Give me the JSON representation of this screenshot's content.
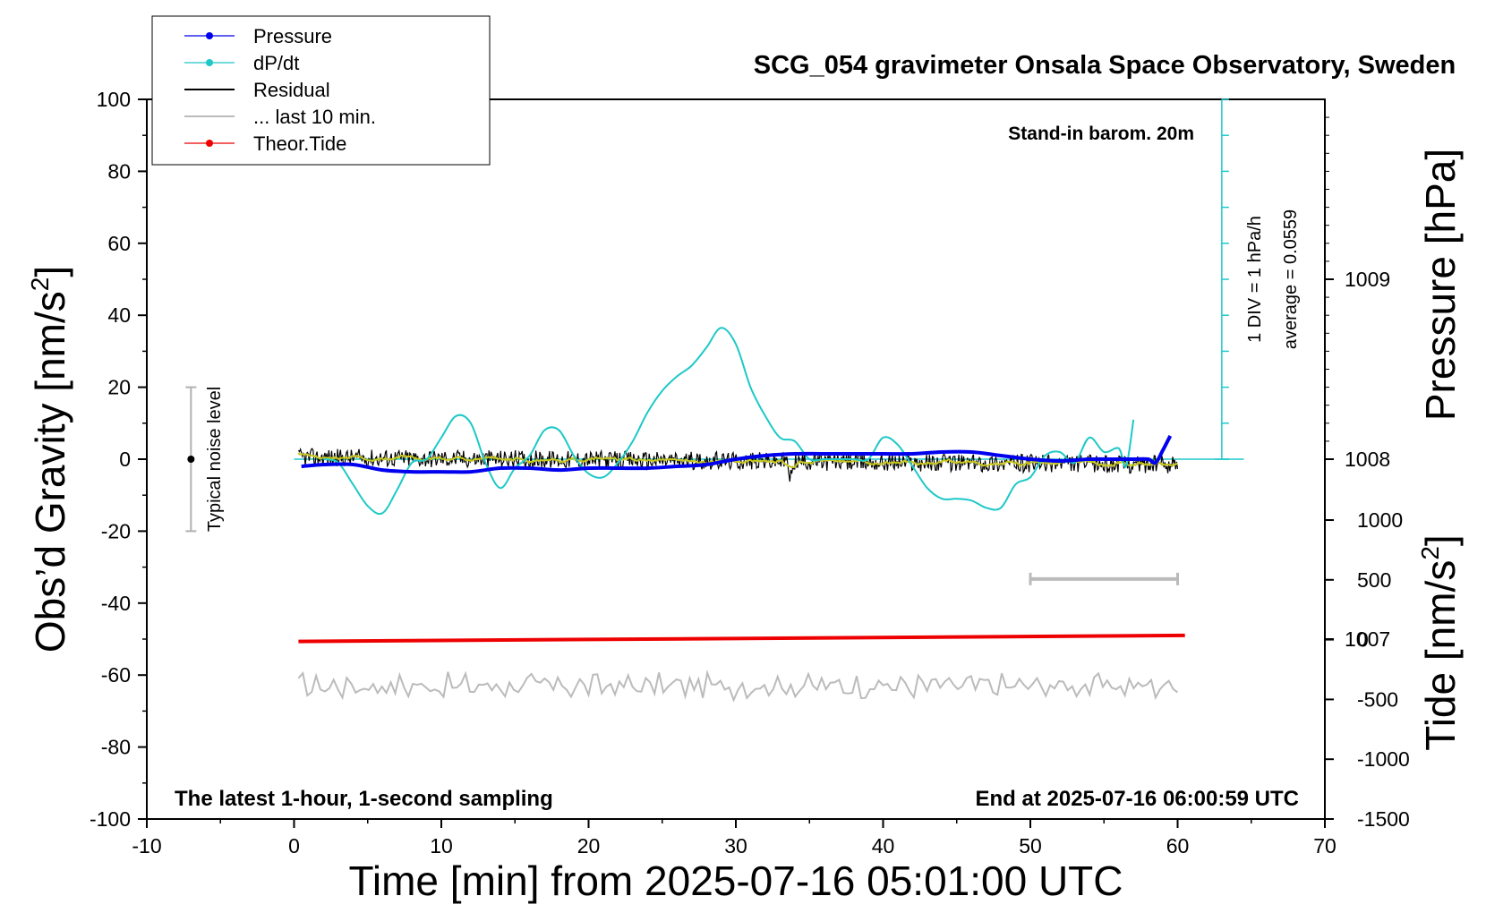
{
  "chart_data": {
    "type": "line",
    "title": "SCG_054 gravimeter Onsala Space Observatory, Sweden",
    "xlabel": "Time [min] from 2025-07-16 05:01:00 UTC",
    "ylabel_left_main": "Obs’d Gravity [nm/s",
    "ylabel_left_sup": "2",
    "ylabel_left_close": "]",
    "ylabel_right_pressure": "Pressure [hPa]",
    "ylabel_right_tide_main": "Tide [nm/s",
    "ylabel_right_tide_sup": "2",
    "ylabel_right_tide_close": "]",
    "xlim": [
      -10,
      70
    ],
    "ylim": [
      -100,
      100
    ],
    "x_ticks": [
      "-10",
      "0",
      "10",
      "20",
      "30",
      "40",
      "50",
      "60",
      "70"
    ],
    "y_ticks": [
      "-100",
      "-80",
      "-60",
      "-40",
      "-20",
      "0",
      "20",
      "40",
      "60",
      "80",
      "100"
    ],
    "pressure_ticks": [
      "1007",
      "1008",
      "1009"
    ],
    "pressure_range": [
      1006.0,
      1010.0
    ],
    "tide_ticks": [
      "-1500",
      "-1000",
      "-500",
      "0",
      "500",
      "1000"
    ],
    "tide_range": [
      -1500,
      1000
    ],
    "annotations": {
      "barometer": "Stand-in barom. 20m",
      "div_note": "1 DIV = 1 hPa/h",
      "average_note": "average = 0.0559",
      "noise_label": "Typical noise level",
      "bottom_left": "The latest 1-hour, 1-second sampling",
      "bottom_right": "End at 2025-07-16 06:00:59 UTC"
    },
    "legend": {
      "placement": "top-left",
      "entries": [
        "Pressure",
        "dP/dt",
        "Residual",
        "... last 10 min.",
        "Theor.Tide"
      ]
    },
    "colors": {
      "pressure": "#0000ee",
      "dpdt": "#1ec8c8",
      "residual": "#000000",
      "residual_smooth": "#c8c81e",
      "last10": "#bbbbbb",
      "tide": "#ee0000"
    },
    "series": [
      {
        "name": "Pressure",
        "axis": "pressure_hPa",
        "x": [
          0.5,
          2,
          4,
          6,
          8,
          10,
          12,
          14,
          16,
          18,
          20,
          22,
          24,
          26,
          28,
          30,
          32,
          34,
          36,
          38,
          40,
          42,
          44,
          46,
          48,
          50,
          52,
          54,
          56,
          57,
          58,
          58.5,
          59,
          59.5
        ],
        "y": [
          1007.96,
          1007.97,
          1007.97,
          1007.94,
          1007.93,
          1007.93,
          1007.93,
          1007.95,
          1007.95,
          1007.94,
          1007.95,
          1007.95,
          1007.95,
          1007.96,
          1007.97,
          1008.0,
          1008.02,
          1008.03,
          1008.03,
          1008.03,
          1008.03,
          1008.03,
          1008.04,
          1008.04,
          1008.02,
          1008.0,
          1007.99,
          1008.0,
          1008.0,
          1008.0,
          1008.0,
          1007.98,
          1008.05,
          1008.13
        ]
      },
      {
        "name": "dP/dt",
        "axis": "pressure_hPa",
        "x": [
          2,
          3,
          4,
          5,
          6,
          7,
          8,
          9,
          10,
          11,
          12,
          13,
          14,
          15,
          16,
          17,
          18,
          19,
          20,
          21,
          22,
          23,
          24,
          25,
          26,
          27,
          28,
          29,
          30,
          31,
          32,
          33,
          34,
          35,
          36,
          37,
          38,
          39,
          40,
          41,
          42,
          43,
          44,
          45,
          46,
          47,
          48,
          49,
          50,
          51,
          52,
          53,
          54,
          55,
          56,
          56.5,
          57
        ],
        "y": [
          1008.0,
          1007.98,
          1007.86,
          1007.74,
          1007.7,
          1007.83,
          1007.98,
          1008.0,
          1008.12,
          1008.24,
          1008.2,
          1007.98,
          1007.84,
          1007.95,
          1008.02,
          1008.16,
          1008.16,
          1008.02,
          1007.92,
          1007.9,
          1007.98,
          1008.1,
          1008.26,
          1008.38,
          1008.46,
          1008.52,
          1008.62,
          1008.73,
          1008.64,
          1008.4,
          1008.24,
          1008.12,
          1008.1,
          1008.0,
          1008.0,
          1008.0,
          1008.0,
          1008.0,
          1008.12,
          1008.08,
          1007.96,
          1007.84,
          1007.78,
          1007.78,
          1007.77,
          1007.73,
          1007.73,
          1007.86,
          1007.9,
          1008.02,
          1008.04,
          1007.98,
          1008.12,
          1008.04,
          1008.06,
          1007.96,
          1008.22
        ]
      },
      {
        "name": "Residual",
        "axis": "gravity_nm_s2",
        "x": [
          0.3,
          60
        ],
        "y": [
          0.5,
          -1.5
        ]
      },
      {
        "name": "... last 10 min.",
        "axis": "gravity_nm_s2",
        "x": [
          0.3,
          60
        ],
        "y": [
          -63,
          -63
        ]
      },
      {
        "name": "Theor.Tide",
        "axis": "tide_nm_s2",
        "x": [
          0.3,
          60.5
        ],
        "y": [
          -15,
          35
        ]
      }
    ],
    "last10_bracket_x": [
      50,
      60
    ],
    "noise_bar_x": -7,
    "noise_bar_y": [
      -20,
      20
    ]
  }
}
